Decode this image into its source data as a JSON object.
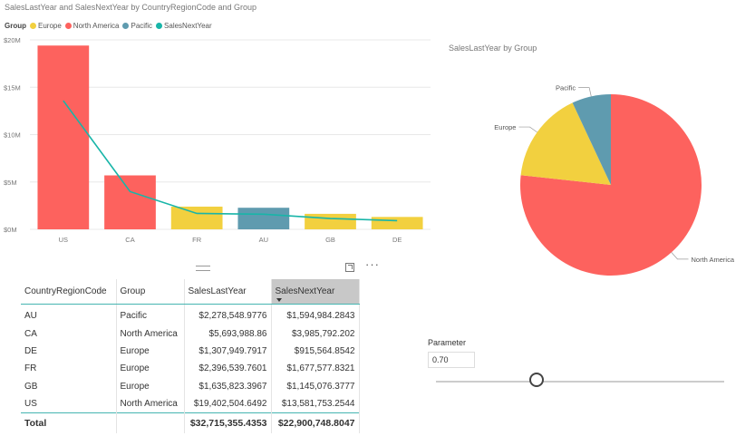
{
  "combo": {
    "title": "SalesLastYear and SalesNextYear by CountryRegionCode and Group",
    "legend_title": "Group",
    "legend": [
      {
        "label": "Europe",
        "color": "#F2D03F"
      },
      {
        "label": "North America",
        "color": "#FD625E"
      },
      {
        "label": "Pacific",
        "color": "#5F9BAF"
      },
      {
        "label": "SalesNextYear",
        "color": "#18B5A8"
      }
    ]
  },
  "pie": {
    "title": "SalesLastYear by Group"
  },
  "chart_data": [
    {
      "type": "bar",
      "title": "SalesLastYear and SalesNextYear by CountryRegionCode and Group",
      "categories": [
        "US",
        "CA",
        "FR",
        "AU",
        "GB",
        "DE"
      ],
      "ylim": [
        0,
        20000000
      ],
      "yticks": [
        {
          "value": 0,
          "label": "$0M"
        },
        {
          "value": 5000000,
          "label": "$5M"
        },
        {
          "value": 10000000,
          "label": "$10M"
        },
        {
          "value": 15000000,
          "label": "$15M"
        },
        {
          "value": 20000000,
          "label": "$20M"
        }
      ],
      "grid": true,
      "legend_position": "top-left",
      "series": [
        {
          "name": "SalesLastYear",
          "type": "bar",
          "values": [
            19402504.6492,
            5693988.86,
            2396539.7601,
            2278548.9776,
            1635823.3967,
            1307949.7917
          ],
          "groups": [
            "North America",
            "North America",
            "Europe",
            "Pacific",
            "Europe",
            "Europe"
          ]
        },
        {
          "name": "SalesNextYear",
          "type": "line",
          "values": [
            13581753.2544,
            3985792.202,
            1677577.8321,
            1594984.2843,
            1145076.3777,
            915564.8542
          ]
        }
      ],
      "group_colors": {
        "Europe": "#F2D03F",
        "North America": "#FD625E",
        "Pacific": "#5F9BAF"
      },
      "line_color": "#18B5A8"
    },
    {
      "type": "pie",
      "title": "SalesLastYear by Group",
      "slices": [
        {
          "label": "North America",
          "value": 25096493.5092,
          "color": "#FD625E"
        },
        {
          "label": "Europe",
          "value": 5340312.9485,
          "color": "#F2D03F"
        },
        {
          "label": "Pacific",
          "value": 2278548.9776,
          "color": "#5F9BAF"
        }
      ]
    }
  ],
  "table": {
    "columns": [
      "CountryRegionCode",
      "Group",
      "SalesLastYear",
      "SalesNextYear"
    ],
    "rows": [
      [
        "AU",
        "Pacific",
        "$2,278,548.9776",
        "$1,594,984.2843"
      ],
      [
        "CA",
        "North America",
        "$5,693,988.86",
        "$3,985,792.202"
      ],
      [
        "DE",
        "Europe",
        "$1,307,949.7917",
        "$915,564.8542"
      ],
      [
        "FR",
        "Europe",
        "$2,396,539.7601",
        "$1,677,577.8321"
      ],
      [
        "GB",
        "Europe",
        "$1,635,823.3967",
        "$1,145,076.3777"
      ],
      [
        "US",
        "North America",
        "$19,402,504.6492",
        "$13,581,753.2544"
      ]
    ],
    "total": [
      "Total",
      "",
      "$32,715,355.4353",
      "$22,900,748.8047"
    ]
  },
  "parameter": {
    "label": "Parameter",
    "value": "0.70",
    "slider_fraction": 0.35
  }
}
